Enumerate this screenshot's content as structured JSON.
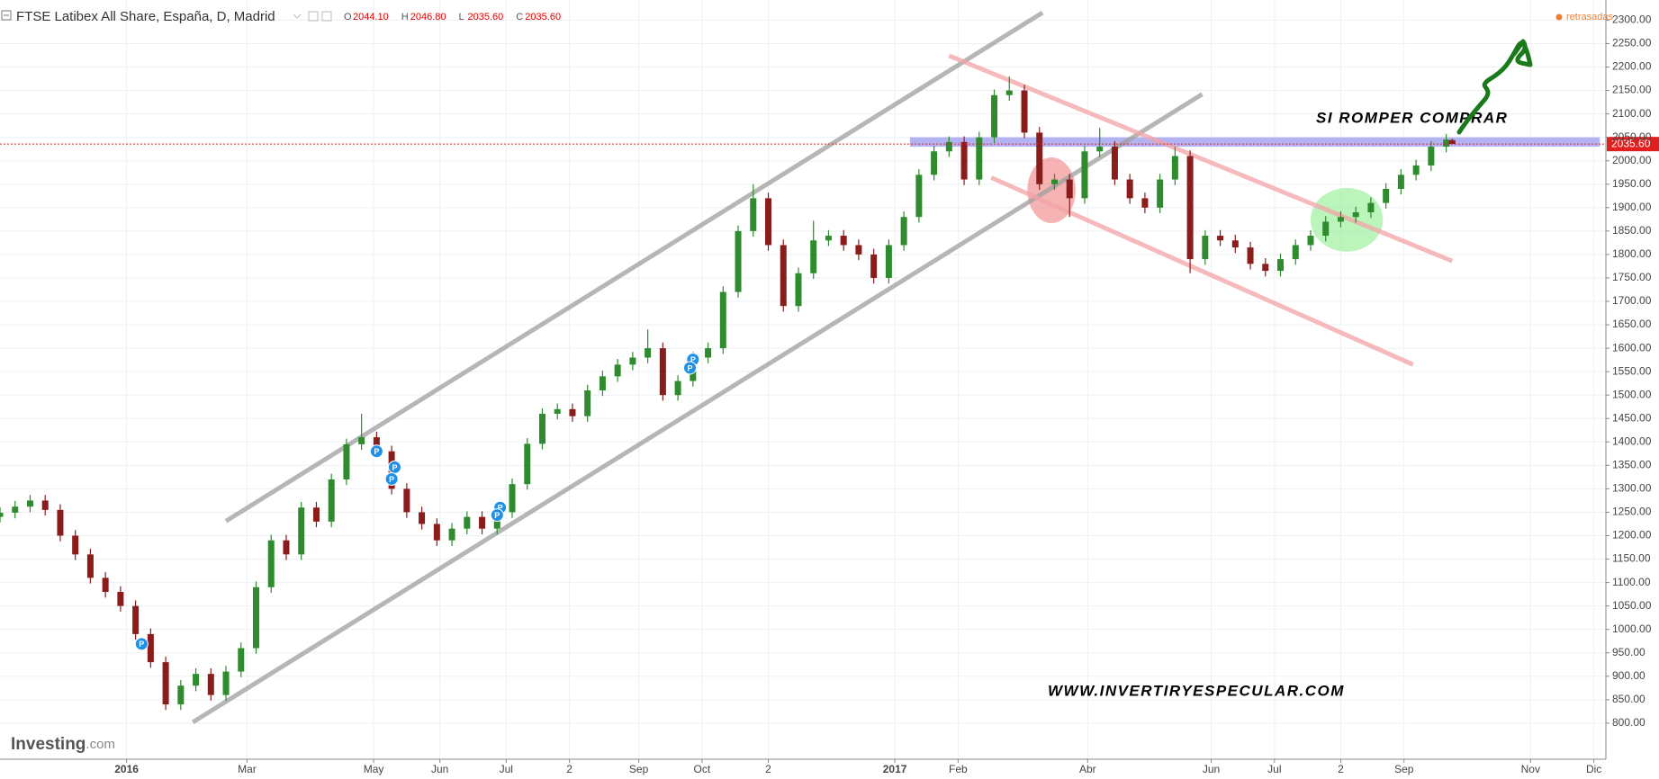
{
  "chart_data": {
    "type": "candlestick",
    "title": "FTSE Latibex All Share, España, D, Madrid",
    "ohlc_header": [
      {
        "key": "O",
        "text": "2044.10"
      },
      {
        "key": "H",
        "text": "2046.80"
      },
      {
        "key": "L",
        "text": "2035.60"
      },
      {
        "key": "C",
        "text": "2035.60"
      }
    ],
    "status": "retrasadas",
    "last_price_label": "2035.60",
    "logo": {
      "main": "Investing",
      "suffix": ".com"
    },
    "annotations": [
      "SI ROMPER COMPRAR",
      "WWW.INVERTIRYESPECULAR.COM"
    ],
    "up_color": "#2e8b2e",
    "down_color": "#8b1c1c",
    "grid": true,
    "xlim": [
      0,
      533
    ],
    "ylim": [
      723,
      2343
    ],
    "xticks": [
      {
        "value": 42,
        "label": "2016"
      },
      {
        "value": 82,
        "label": "Mar"
      },
      {
        "value": 124,
        "label": "May"
      },
      {
        "value": 146,
        "label": "Jun"
      },
      {
        "value": 168,
        "label": "Jul"
      },
      {
        "value": 189,
        "label": "2"
      },
      {
        "value": 212,
        "label": "Sep"
      },
      {
        "value": 233,
        "label": "Oct"
      },
      {
        "value": 255,
        "label": "2"
      },
      {
        "value": 297,
        "label": "2017"
      },
      {
        "value": 318,
        "label": "Feb"
      },
      {
        "value": 361,
        "label": "Abr"
      },
      {
        "value": 402,
        "label": "Jun"
      },
      {
        "value": 423,
        "label": "Jul"
      },
      {
        "value": 445,
        "label": "2"
      },
      {
        "value": 466,
        "label": "Sep"
      },
      {
        "value": 508,
        "label": "Nov"
      },
      {
        "value": 529,
        "label": "Dic"
      }
    ],
    "yticks": [
      {
        "value": 800,
        "label": "800.00"
      },
      {
        "value": 850,
        "label": "850.00"
      },
      {
        "value": 900,
        "label": "900.00"
      },
      {
        "value": 950,
        "label": "950.00"
      },
      {
        "value": 1000,
        "label": "1000.00"
      },
      {
        "value": 1050,
        "label": "1050.00"
      },
      {
        "value": 1100,
        "label": "1100.00"
      },
      {
        "value": 1150,
        "label": "1150.00"
      },
      {
        "value": 1200,
        "label": "1200.00"
      },
      {
        "value": 1250,
        "label": "1250.00"
      },
      {
        "value": 1300,
        "label": "1300.00"
      },
      {
        "value": 1350,
        "label": "1350.00"
      },
      {
        "value": 1400,
        "label": "1400.00"
      },
      {
        "value": 1450,
        "label": "1450.00"
      },
      {
        "value": 1500,
        "label": "1500.00"
      },
      {
        "value": 1550,
        "label": "1550.00"
      },
      {
        "value": 1600,
        "label": "1600.00"
      },
      {
        "value": 1650,
        "label": "1650.00"
      },
      {
        "value": 1700,
        "label": "1700.00"
      },
      {
        "value": 1750,
        "label": "1750.00"
      },
      {
        "value": 1800,
        "label": "1800.00"
      },
      {
        "value": 1850,
        "label": "1850.00"
      },
      {
        "value": 1900,
        "label": "1900.00"
      },
      {
        "value": 1950,
        "label": "1950.00"
      },
      {
        "value": 2000,
        "label": "2000.00"
      },
      {
        "value": 2050,
        "label": "2050.00"
      },
      {
        "value": 2100,
        "label": "2100.00"
      },
      {
        "value": 2150,
        "label": "2150.00"
      },
      {
        "value": 2200,
        "label": "2200.00"
      },
      {
        "value": 2250,
        "label": "2250.00"
      },
      {
        "value": 2300,
        "label": "2300.00"
      }
    ],
    "x": [
      0,
      5,
      10,
      15,
      20,
      25,
      30,
      35,
      40,
      45,
      50,
      55,
      60,
      65,
      70,
      75,
      80,
      85,
      90,
      95,
      100,
      105,
      110,
      115,
      120,
      125,
      130,
      135,
      140,
      145,
      150,
      155,
      160,
      165,
      170,
      175,
      180,
      185,
      190,
      195,
      200,
      205,
      210,
      215,
      220,
      225,
      230,
      235,
      240,
      245,
      250,
      255,
      260,
      265,
      270,
      275,
      280,
      285,
      290,
      295,
      300,
      305,
      310,
      315,
      320,
      325,
      330,
      335,
      340,
      345,
      350,
      355,
      360,
      365,
      370,
      375,
      380,
      385,
      390,
      395,
      400,
      405,
      410,
      415,
      420,
      425,
      430,
      435,
      440,
      445,
      450,
      455,
      460,
      465,
      470,
      475,
      480,
      482
    ],
    "open": [
      1240,
      1249,
      1262,
      1275,
      1255,
      1200,
      1160,
      1110,
      1080,
      1050,
      990,
      930,
      840,
      880,
      905,
      860,
      910,
      960,
      1090,
      1190,
      1160,
      1260,
      1230,
      1320,
      1395,
      1410,
      1380,
      1300,
      1250,
      1225,
      1190,
      1215,
      1240,
      1215,
      1250,
      1310,
      1396,
      1460,
      1470,
      1455,
      1510,
      1540,
      1565,
      1580,
      1600,
      1500,
      1530,
      1580,
      1600,
      1720,
      1850,
      1920,
      1820,
      1690,
      1760,
      1830,
      1840,
      1820,
      1800,
      1750,
      1820,
      1880,
      1970,
      2020,
      2040,
      1960,
      2050,
      2140,
      2150,
      2060,
      1950,
      1960,
      1920,
      2020,
      2030,
      1960,
      1920,
      1900,
      1960,
      2010,
      1790,
      1840,
      1830,
      1815,
      1780,
      1765,
      1790,
      1820,
      1840,
      1870,
      1880,
      1890,
      1910,
      1940,
      1970,
      1990,
      2030,
      2044.1
    ],
    "high": [
      1261,
      1274,
      1287,
      1287,
      1267,
      1212,
      1172,
      1122,
      1092,
      1062,
      1002,
      942,
      892,
      917,
      917,
      922,
      972,
      1102,
      1202,
      1202,
      1272,
      1272,
      1332,
      1407,
      1460,
      1422,
      1392,
      1312,
      1262,
      1237,
      1227,
      1252,
      1252,
      1262,
      1322,
      1408,
      1472,
      1482,
      1482,
      1522,
      1552,
      1577,
      1592,
      1640,
      1612,
      1542,
      1592,
      1612,
      1732,
      1862,
      1950,
      1932,
      1832,
      1772,
      1872,
      1852,
      1852,
      1832,
      1812,
      1832,
      1892,
      1982,
      2032,
      2052,
      2052,
      2062,
      2152,
      2180,
      2162,
      2072,
      1972,
      1972,
      2032,
      2070,
      2042,
      1972,
      1932,
      1972,
      2030,
      2022,
      1852,
      1852,
      1842,
      1827,
      1792,
      1802,
      1832,
      1852,
      1882,
      1892,
      1902,
      1922,
      1952,
      1982,
      2002,
      2042,
      2057,
      2046.8
    ],
    "low": [
      1228,
      1237,
      1250,
      1243,
      1188,
      1148,
      1098,
      1068,
      1038,
      978,
      918,
      828,
      828,
      868,
      848,
      848,
      898,
      948,
      1078,
      1148,
      1148,
      1218,
      1218,
      1308,
      1383,
      1368,
      1288,
      1238,
      1213,
      1178,
      1178,
      1203,
      1203,
      1203,
      1238,
      1298,
      1384,
      1448,
      1443,
      1443,
      1498,
      1528,
      1553,
      1568,
      1488,
      1488,
      1518,
      1568,
      1588,
      1708,
      1838,
      1808,
      1678,
      1678,
      1748,
      1818,
      1808,
      1788,
      1738,
      1738,
      1808,
      1868,
      1958,
      2008,
      1948,
      1948,
      2038,
      2128,
      2048,
      1938,
      1938,
      1880,
      1908,
      2008,
      1948,
      1908,
      1888,
      1888,
      1948,
      1760,
      1778,
      1818,
      1803,
      1768,
      1753,
      1753,
      1778,
      1808,
      1828,
      1858,
      1868,
      1878,
      1898,
      1928,
      1958,
      1978,
      2018,
      2035.6
    ],
    "close": [
      1249,
      1262,
      1275,
      1255,
      1200,
      1160,
      1110,
      1080,
      1050,
      990,
      930,
      840,
      880,
      905,
      860,
      910,
      960,
      1090,
      1190,
      1160,
      1260,
      1230,
      1320,
      1395,
      1410,
      1380,
      1300,
      1250,
      1225,
      1190,
      1215,
      1240,
      1215,
      1250,
      1310,
      1396,
      1460,
      1470,
      1455,
      1510,
      1540,
      1565,
      1580,
      1600,
      1500,
      1530,
      1580,
      1600,
      1720,
      1850,
      1920,
      1820,
      1690,
      1760,
      1830,
      1840,
      1820,
      1800,
      1750,
      1820,
      1880,
      1970,
      2020,
      2040,
      1960,
      2050,
      2140,
      2150,
      2060,
      1950,
      1960,
      1920,
      2020,
      2030,
      1960,
      1920,
      1900,
      1960,
      2010,
      1790,
      1840,
      1830,
      1815,
      1780,
      1765,
      1790,
      1820,
      1840,
      1870,
      1880,
      1890,
      1910,
      1940,
      1970,
      1990,
      2030,
      2045,
      2035.6
    ],
    "events": [
      {
        "x": 47,
        "y": 969,
        "label": "P"
      },
      {
        "x": 125,
        "y": 1380,
        "label": "P"
      },
      {
        "x": 131,
        "y": 1346,
        "label": "P"
      },
      {
        "x": 130,
        "y": 1321,
        "label": "P"
      },
      {
        "x": 166,
        "y": 1260,
        "label": "P"
      },
      {
        "x": 165,
        "y": 1244,
        "label": "P"
      },
      {
        "x": 230,
        "y": 1576,
        "label": "P"
      },
      {
        "x": 229,
        "y": 1558,
        "label": "P"
      }
    ],
    "trendlines": [
      {
        "color": "#9e9e9e",
        "x": [
          75,
          346
        ],
        "y": [
          1231,
          2316
        ]
      },
      {
        "color": "#9e9e9e",
        "x": [
          64,
          399
        ],
        "y": [
          802,
          2142
        ]
      },
      {
        "color": "#f4a3a8",
        "x": [
          315,
          482
        ],
        "y": [
          2224,
          1786
        ]
      },
      {
        "color": "#f4a3a8",
        "x": [
          329,
          469
        ],
        "y": [
          1964,
          1565
        ]
      }
    ],
    "band": {
      "color": "#9a9af0",
      "x": [
        302,
        531
      ],
      "y": [
        2030,
        2050
      ]
    },
    "ellipses": [
      {
        "color": "#f08080",
        "x": 349,
        "y": 1937,
        "rx": 8,
        "ry": 70
      },
      {
        "color": "#90ee90",
        "x": 447,
        "y": 1874,
        "rx": 12,
        "ry": 68
      }
    ]
  }
}
